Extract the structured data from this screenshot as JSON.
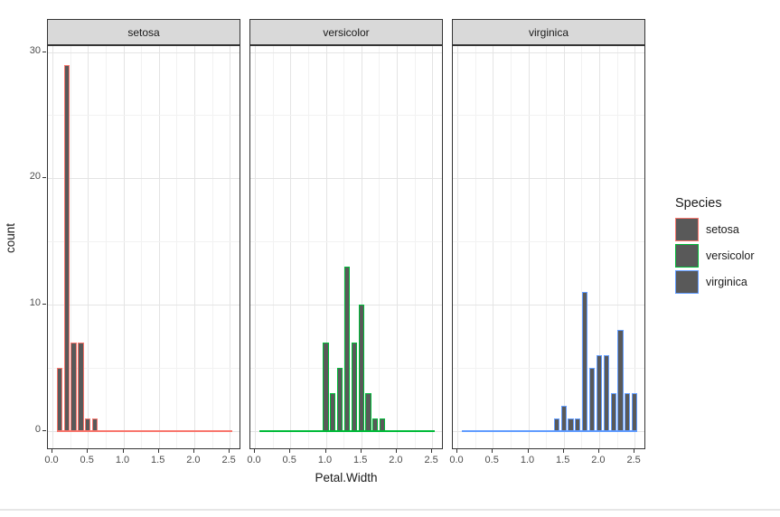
{
  "chart_data": {
    "type": "bar",
    "subtype": "faceted-histogram",
    "xlabel": "Petal.Width",
    "ylabel": "count",
    "x_tick_values": [
      0.0,
      0.5,
      1.0,
      1.5,
      2.0,
      2.5
    ],
    "x_tick_labels": [
      "0.0",
      "0.5",
      "1.0",
      "1.5",
      "2.0",
      "2.5"
    ],
    "x_minor_ticks": [
      0.25,
      0.75,
      1.25,
      1.75,
      2.25
    ],
    "y_tick_values": [
      0,
      10,
      20,
      30
    ],
    "y_tick_labels": [
      "0",
      "10",
      "20",
      "30"
    ],
    "y_minor_ticks": [
      5,
      15,
      25
    ],
    "xlim": [
      -0.064,
      2.664
    ],
    "ylim": [
      -1.52,
      30.47
    ],
    "bin_width": 0.08,
    "bin_range": [
      0.06,
      2.54
    ],
    "grid": "major-and-minor",
    "bar_fill": "#595959",
    "panel_bg": "#ffffff",
    "strip_bg": "#d9d9d9",
    "facets": [
      {
        "label": "setosa",
        "color": "#F8766D",
        "values": [
          [
            0.1,
            5
          ],
          [
            0.2,
            29
          ],
          [
            0.3,
            7
          ],
          [
            0.4,
            7
          ],
          [
            0.5,
            1
          ],
          [
            0.6,
            1
          ]
        ]
      },
      {
        "label": "versicolor",
        "color": "#00BA38",
        "values": [
          [
            1.0,
            7
          ],
          [
            1.1,
            3
          ],
          [
            1.2,
            5
          ],
          [
            1.3,
            13
          ],
          [
            1.4,
            7
          ],
          [
            1.5,
            10
          ],
          [
            1.6,
            3
          ],
          [
            1.7,
            1
          ],
          [
            1.8,
            1
          ]
        ]
      },
      {
        "label": "virginica",
        "color": "#619CFF",
        "values": [
          [
            1.4,
            1
          ],
          [
            1.5,
            2
          ],
          [
            1.6,
            1
          ],
          [
            1.7,
            1
          ],
          [
            1.8,
            11
          ],
          [
            1.9,
            5
          ],
          [
            2.0,
            6
          ],
          [
            2.1,
            6
          ],
          [
            2.2,
            3
          ],
          [
            2.3,
            8
          ],
          [
            2.4,
            3
          ],
          [
            2.5,
            3
          ]
        ]
      }
    ],
    "legend": {
      "title": "Species",
      "position": "right",
      "entries": [
        {
          "label": "setosa",
          "color": "#F8766D"
        },
        {
          "label": "versicolor",
          "color": "#00BA38"
        },
        {
          "label": "virginica",
          "color": "#619CFF"
        }
      ]
    }
  }
}
